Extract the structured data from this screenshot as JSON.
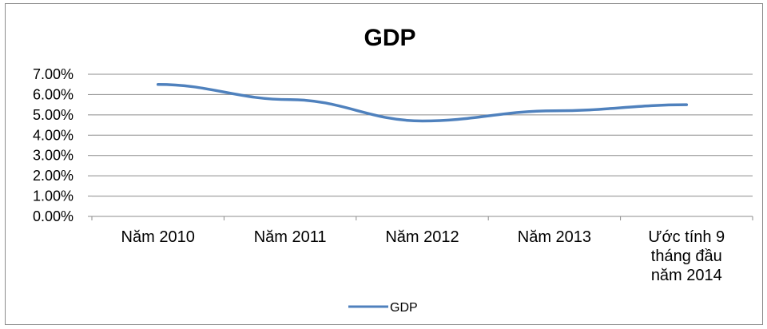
{
  "chart_data": {
    "type": "line",
    "title": "GDP",
    "categories": [
      [
        "Năm 2010"
      ],
      [
        "Năm 2011"
      ],
      [
        "Năm 2012"
      ],
      [
        "Năm 2013"
      ],
      [
        "Ước tính 9",
        "tháng đầu",
        "năm 2014"
      ]
    ],
    "series": [
      {
        "name": "GDP",
        "values": [
          0.065,
          0.0575,
          0.047,
          0.052,
          0.055
        ]
      }
    ],
    "y_ticks": [
      "0.00%",
      "1.00%",
      "2.00%",
      "3.00%",
      "4.00%",
      "5.00%",
      "6.00%",
      "7.00%"
    ],
    "ylim": [
      0,
      0.07
    ],
    "grid": true,
    "legend": "bottom",
    "colors": {
      "series": "#4f81bd",
      "grid": "#8c8c8c"
    }
  }
}
